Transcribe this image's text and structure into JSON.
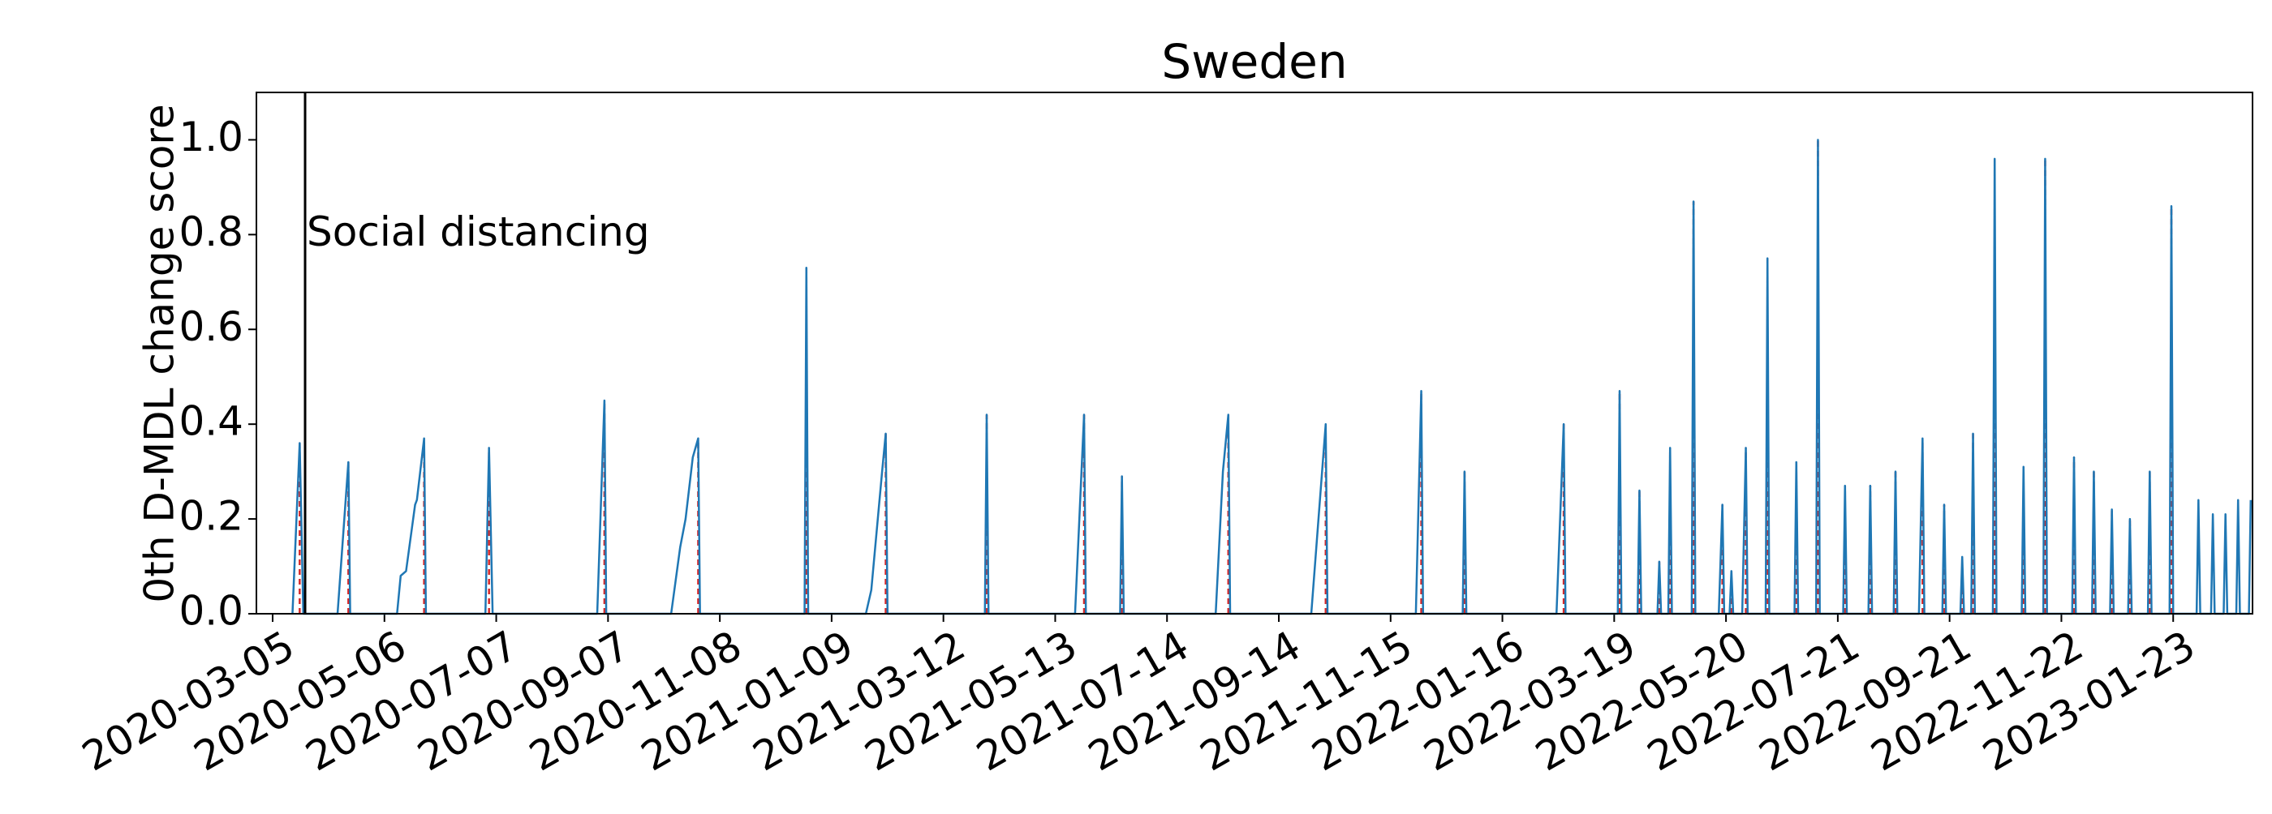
{
  "chart_data": {
    "type": "line",
    "title": "Sweden",
    "y_label": "0th D-MDL change score",
    "x": [
      "2020-03-16",
      "2020-03-20",
      "2020-03-22",
      "2020-04-10",
      "2020-04-16",
      "2020-04-17",
      "2020-05-13",
      "2020-05-15",
      "2020-05-18",
      "2020-05-23",
      "2020-05-24",
      "2020-05-28",
      "2020-05-29",
      "2020-07-01",
      "2020-07-03",
      "2020-07-05",
      "2020-09-01",
      "2020-09-05",
      "2020-09-06",
      "2020-10-12",
      "2020-10-17",
      "2020-10-20",
      "2020-10-24",
      "2020-10-27",
      "2020-10-28",
      "2020-12-25",
      "2020-12-26",
      "2020-12-27",
      "2021-01-28",
      "2021-01-31",
      "2021-02-06",
      "2021-02-08",
      "2021-02-09",
      "2021-04-04",
      "2021-04-05",
      "2021-04-06",
      "2021-05-24",
      "2021-05-29",
      "2021-05-30",
      "2021-06-18",
      "2021-06-19",
      "2021-06-20",
      "2021-08-10",
      "2021-08-14",
      "2021-08-17",
      "2021-08-18",
      "2021-10-02",
      "2021-10-10",
      "2021-10-11",
      "2021-11-29",
      "2021-12-02",
      "2021-12-03",
      "2021-12-25",
      "2021-12-26",
      "2021-12-27",
      "2022-02-15",
      "2022-02-19",
      "2022-02-20",
      "2022-03-21",
      "2022-03-22",
      "2022-03-23",
      "2022-04-01",
      "2022-04-02",
      "2022-04-03",
      "2022-04-12",
      "2022-04-13",
      "2022-04-14",
      "2022-04-18",
      "2022-04-19",
      "2022-04-20",
      "2022-05-01",
      "2022-05-02",
      "2022-05-03",
      "2022-05-16",
      "2022-05-18",
      "2022-05-19",
      "2022-05-22",
      "2022-05-23",
      "2022-05-24",
      "2022-05-29",
      "2022-05-31",
      "2022-06-01",
      "2022-06-11",
      "2022-06-12",
      "2022-06-13",
      "2022-06-27",
      "2022-06-28",
      "2022-06-29",
      "2022-07-09",
      "2022-07-10",
      "2022-07-11",
      "2022-07-24",
      "2022-07-25",
      "2022-07-26",
      "2022-08-07",
      "2022-08-08",
      "2022-08-09",
      "2022-08-21",
      "2022-08-22",
      "2022-08-23",
      "2022-09-04",
      "2022-09-06",
      "2022-09-07",
      "2022-09-17",
      "2022-09-18",
      "2022-09-19",
      "2022-09-27",
      "2022-09-28",
      "2022-09-29",
      "2022-10-03",
      "2022-10-04",
      "2022-10-05",
      "2022-10-15",
      "2022-10-16",
      "2022-10-17",
      "2022-10-31",
      "2022-11-01",
      "2022-11-02",
      "2022-11-12",
      "2022-11-13",
      "2022-11-14",
      "2022-11-28",
      "2022-11-29",
      "2022-11-30",
      "2022-12-09",
      "2022-12-10",
      "2022-12-11",
      "2022-12-19",
      "2022-12-20",
      "2022-12-21",
      "2022-12-29",
      "2022-12-30",
      "2022-12-31",
      "2023-01-09",
      "2023-01-10",
      "2023-01-11",
      "2023-01-21",
      "2023-01-22",
      "2023-01-23",
      "2023-02-05",
      "2023-02-06",
      "2023-02-07",
      "2023-02-13",
      "2023-02-14",
      "2023-02-15",
      "2023-02-20",
      "2023-02-21",
      "2023-02-22",
      "2023-02-27",
      "2023-02-28",
      "2023-03-01",
      "2023-03-06",
      "2023-03-07"
    ],
    "series": [
      {
        "color": "#1f77b4",
        "values": [
          0,
          0.36,
          0,
          0,
          0.32,
          0,
          0,
          0.08,
          0.09,
          0.23,
          0.24,
          0.37,
          0,
          0,
          0.35,
          0,
          0,
          0.45,
          0,
          0,
          0.14,
          0.2,
          0.33,
          0.37,
          0,
          0,
          0.73,
          0,
          0,
          0.05,
          0.3,
          0.38,
          0,
          0,
          0.42,
          0,
          0,
          0.42,
          0,
          0,
          0.29,
          0,
          0,
          0.3,
          0.42,
          0,
          0,
          0.4,
          0,
          0,
          0.47,
          0,
          0,
          0.3,
          0,
          0,
          0.4,
          0,
          0,
          0.47,
          0,
          0,
          0.26,
          0,
          0,
          0.11,
          0,
          0,
          0.35,
          0,
          0,
          0.87,
          0,
          0,
          0.23,
          0,
          0,
          0.09,
          0,
          0,
          0.35,
          0,
          0,
          0.75,
          0,
          0,
          0.32,
          0,
          0,
          1.0,
          0,
          0,
          0.27,
          0,
          0,
          0.27,
          0,
          0,
          0.3,
          0,
          0,
          0.37,
          0,
          0,
          0.23,
          0,
          0,
          0.12,
          0,
          0,
          0.38,
          0,
          0,
          0.96,
          0,
          0,
          0.31,
          0,
          0,
          0.96,
          0,
          0,
          0.33,
          0,
          0,
          0.3,
          0,
          0,
          0.22,
          0,
          0,
          0.2,
          0,
          0,
          0.3,
          0,
          0,
          0.86,
          0,
          0,
          0.24,
          0,
          0,
          0.21,
          0,
          0,
          0.21,
          0,
          0,
          0.24,
          0,
          0,
          0.24
        ]
      }
    ],
    "change_points": [
      "2020-03-20",
      "2020-04-16",
      "2020-05-28",
      "2020-07-03",
      "2020-09-05",
      "2020-10-27",
      "2020-12-26",
      "2021-02-08",
      "2021-04-05",
      "2021-05-29",
      "2021-06-19",
      "2021-08-17",
      "2021-10-10",
      "2021-12-02",
      "2021-12-26",
      "2022-02-19",
      "2022-03-22",
      "2022-04-02",
      "2022-04-13",
      "2022-04-19",
      "2022-05-02",
      "2022-05-18",
      "2022-05-23",
      "2022-05-31",
      "2022-06-12",
      "2022-06-28",
      "2022-07-10",
      "2022-07-25",
      "2022-08-08",
      "2022-08-22",
      "2022-09-06",
      "2022-09-18",
      "2022-09-28",
      "2022-10-04",
      "2022-10-16",
      "2022-11-01",
      "2022-11-13",
      "2022-11-29",
      "2022-12-10",
      "2022-12-20",
      "2022-12-30",
      "2023-01-10",
      "2023-01-22"
    ],
    "change_point_color": "#d62728",
    "annotation": {
      "x": "2020-03-23",
      "text": "Social distancing"
    },
    "xlim": [
      "2020-02-25",
      "2023-03-08"
    ],
    "xticks": [
      "2020-03-05",
      "2020-05-06",
      "2020-07-07",
      "2020-09-07",
      "2020-11-08",
      "2021-01-09",
      "2021-03-12",
      "2021-05-13",
      "2021-07-14",
      "2021-09-14",
      "2021-11-15",
      "2022-01-16",
      "2022-03-19",
      "2022-05-20",
      "2022-07-21",
      "2022-09-21",
      "2022-11-22",
      "2023-01-23"
    ],
    "ylim": [
      0,
      1.1
    ],
    "yticks": [
      {
        "value": 0,
        "label": "0.0"
      },
      0.2,
      0.4,
      0.6,
      0.8,
      {
        "value": 1,
        "label": "1.0"
      }
    ],
    "grid": false
  }
}
